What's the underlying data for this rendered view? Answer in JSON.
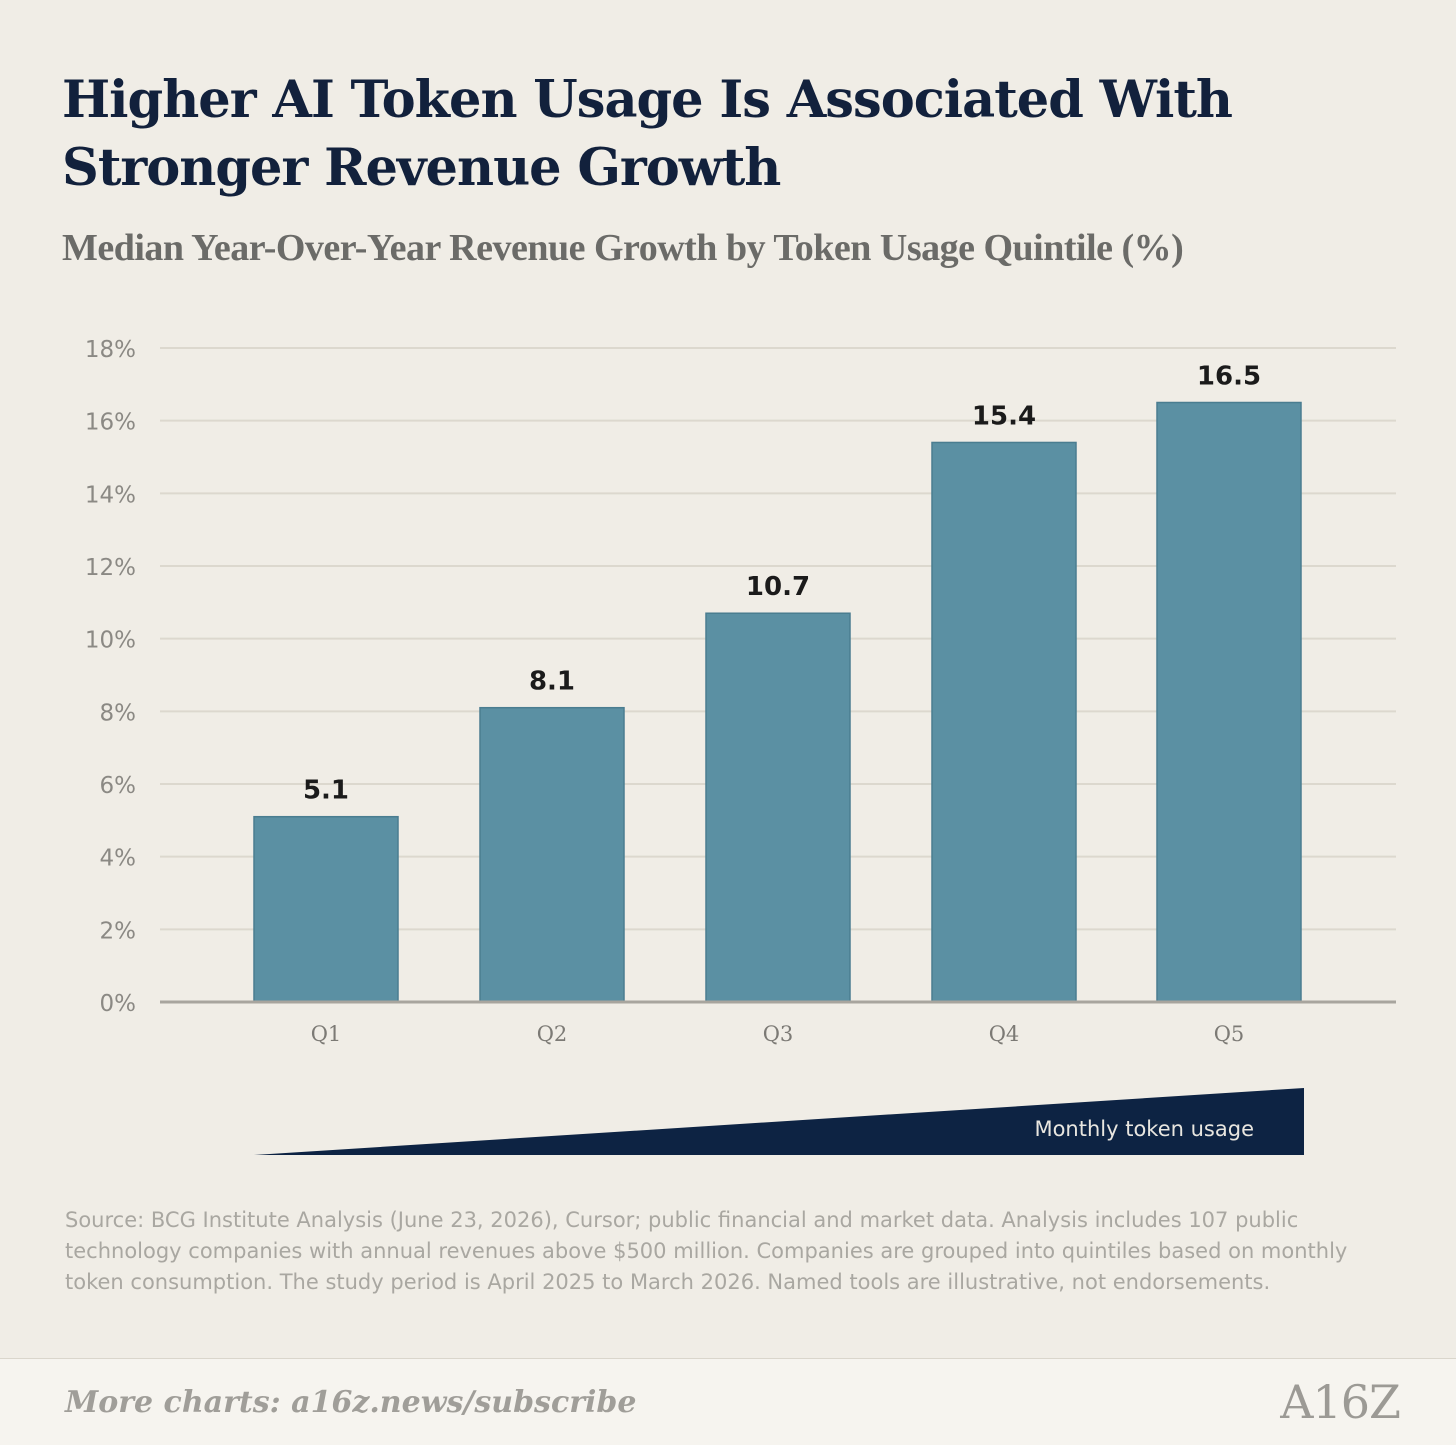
{
  "header": {
    "title": "Higher AI Token Usage Is Associated With Stronger Revenue Growth",
    "subtitle": "Median Year-Over-Year Revenue Growth by Token Usage Quintile (%)"
  },
  "chart_data": {
    "type": "bar",
    "title": "Higher AI Token Usage Is Associated With Stronger Revenue Growth",
    "subtitle": "Median Year-Over-Year Revenue Growth by Token Usage Quintile (%)",
    "categories": [
      "Q1",
      "Q2",
      "Q3",
      "Q4",
      "Q5"
    ],
    "values": [
      5.1,
      8.1,
      10.7,
      15.4,
      16.5
    ],
    "data_labels": [
      "5.1",
      "8.1",
      "10.7",
      "15.4",
      "16.5"
    ],
    "ylim": [
      0,
      18
    ],
    "yticks": [
      0,
      2,
      4,
      6,
      8,
      10,
      12,
      14,
      16,
      18
    ],
    "ytick_labels": [
      "0%",
      "2%",
      "4%",
      "6%",
      "8%",
      "10%",
      "12%",
      "14%",
      "16%",
      "18%"
    ],
    "grid": true,
    "bar_color": "#5b90a3",
    "annotation": "Monthly token usage"
  },
  "colors": {
    "background": "#f0ede6",
    "title": "#12213c",
    "bar": "#5b90a3",
    "wedge": "#0d2343"
  },
  "source_note": "Source: BCG Institute Analysis (June 23, 2026), Cursor; public financial and market data. Analysis includes 107 public technology companies with annual revenues above $500 million. Companies are grouped into quintiles based on monthly token consumption. The study period is April 2025 to March 2026. Named tools are illustrative, not endorsements.",
  "footer": {
    "cta": "More charts: a16z.news/subscribe",
    "logo": "A16Z"
  }
}
